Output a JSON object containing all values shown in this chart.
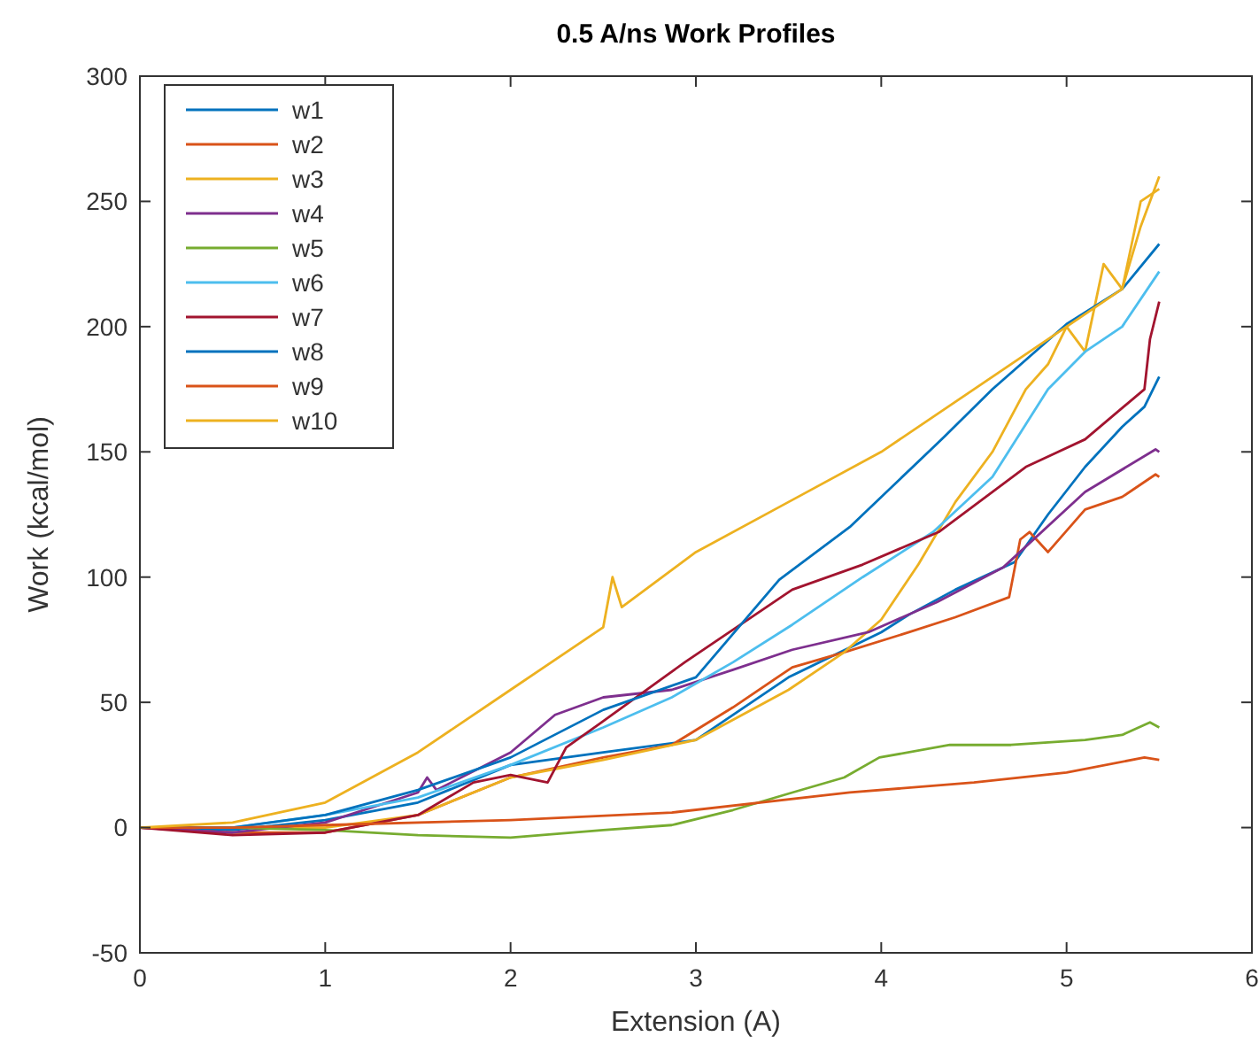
{
  "chart_data": {
    "type": "line",
    "title": "0.5 A/ns Work Profiles",
    "xlabel": "Extension (A)",
    "ylabel": "Work (kcal/mol)",
    "xlim": [
      0,
      6
    ],
    "xticks": [
      0,
      1,
      2,
      3,
      4,
      5,
      6
    ],
    "ylim": [
      -50,
      300
    ],
    "yticks": [
      -50,
      0,
      50,
      100,
      150,
      200,
      250,
      300
    ],
    "grid": false,
    "legend": "top left",
    "line_style": "solid",
    "series": [
      {
        "name": "w1",
        "color": "#0072bd",
        "x": [
          0,
          0.5,
          1,
          1.5,
          2,
          2.5,
          3,
          3.5,
          4,
          4.15,
          4.4,
          4.72,
          4.9,
          5.1,
          5.3,
          5.42,
          5.5
        ],
        "values": [
          0,
          -1,
          3,
          10,
          25,
          30,
          35,
          60,
          78,
          85,
          95,
          106,
          125,
          144,
          160,
          168,
          180
        ]
      },
      {
        "name": "w2",
        "color": "#d95319",
        "x": [
          0,
          0.5,
          1,
          1.5,
          2,
          2.5,
          2.87,
          3.2,
          3.52,
          3.8,
          4.15,
          4.4,
          4.69,
          4.75,
          4.8,
          4.9,
          5.1,
          5.3,
          5.48,
          5.5
        ],
        "values": [
          0,
          -2,
          -2,
          5,
          20,
          28,
          33,
          48,
          64,
          70,
          78,
          84,
          92,
          115,
          118,
          110,
          127,
          132,
          141,
          140
        ]
      },
      {
        "name": "w3",
        "color": "#edb120",
        "x": [
          0,
          0.5,
          1,
          1.5,
          2,
          2.5,
          3,
          3.5,
          3.8,
          4,
          4.2,
          4.4,
          4.6,
          4.78,
          4.9,
          5,
          5.1,
          5.2,
          5.3,
          5.4,
          5.5
        ],
        "values": [
          0,
          0,
          0,
          5,
          20,
          27,
          35,
          55,
          70,
          83,
          105,
          130,
          150,
          175,
          185,
          200,
          190,
          225,
          215,
          250,
          255
        ]
      },
      {
        "name": "w4",
        "color": "#7e2f8e",
        "x": [
          0,
          0.5,
          1,
          1.5,
          1.55,
          1.6,
          2,
          2.24,
          2.5,
          2.87,
          3.2,
          3.52,
          3.93,
          4.3,
          4.66,
          5.1,
          5.48,
          5.5
        ],
        "values": [
          0,
          -2,
          2,
          14,
          20,
          15,
          30,
          45,
          52,
          55,
          63,
          71,
          78,
          90,
          104,
          134,
          151,
          150
        ]
      },
      {
        "name": "w5",
        "color": "#77ac30",
        "x": [
          0,
          0.5,
          1,
          1.5,
          2,
          2.5,
          2.87,
          3.2,
          3.52,
          3.8,
          3.99,
          4.37,
          4.7,
          5.1,
          5.3,
          5.45,
          5.5
        ],
        "values": [
          0,
          0,
          -1,
          -3,
          -4,
          -1,
          1,
          7,
          14,
          20,
          28,
          33,
          33,
          35,
          37,
          42,
          40
        ]
      },
      {
        "name": "w6",
        "color": "#4dbeee",
        "x": [
          0,
          0.5,
          1,
          1.5,
          2,
          2.5,
          2.87,
          3.2,
          3.52,
          3.9,
          4.28,
          4.6,
          4.9,
          5.1,
          5.3,
          5.5
        ],
        "values": [
          0,
          0,
          5,
          12,
          25,
          40,
          52,
          66,
          81,
          100,
          118,
          140,
          175,
          190,
          200,
          222
        ]
      },
      {
        "name": "w7",
        "color": "#a2142f",
        "x": [
          0,
          0.5,
          1,
          1.5,
          1.8,
          2,
          2.2,
          2.3,
          2.49,
          2.94,
          3.52,
          3.9,
          4.31,
          4.78,
          5.1,
          5.42,
          5.45,
          5.5
        ],
        "values": [
          0,
          -3,
          -2,
          5,
          18,
          21,
          18,
          32,
          42,
          66,
          95,
          105,
          118,
          144,
          155,
          175,
          195,
          210
        ]
      },
      {
        "name": "w8",
        "color": "#0072bd",
        "x": [
          0,
          0.5,
          1,
          1.5,
          2,
          2.5,
          3,
          3.45,
          3.83,
          4.34,
          4.6,
          5,
          5.3,
          5.5
        ],
        "values": [
          0,
          0,
          5,
          15,
          28,
          47,
          60,
          99,
          120,
          156,
          175,
          201,
          215,
          233
        ]
      },
      {
        "name": "w9",
        "color": "#d95319",
        "x": [
          0,
          0.5,
          1,
          2,
          2.87,
          3.83,
          4.5,
          5,
          5.42,
          5.5
        ],
        "values": [
          0,
          0,
          1,
          3,
          6,
          14,
          18,
          22,
          28,
          27
        ]
      },
      {
        "name": "w10",
        "color": "#edb120",
        "x": [
          0,
          0.5,
          1,
          1.5,
          2,
          2.5,
          2.55,
          2.6,
          3,
          3.5,
          4,
          4.5,
          5,
          5.3,
          5.4,
          5.5
        ],
        "values": [
          0,
          2,
          10,
          30,
          55,
          80,
          100,
          88,
          110,
          130,
          150,
          175,
          200,
          215,
          240,
          260
        ]
      }
    ]
  }
}
